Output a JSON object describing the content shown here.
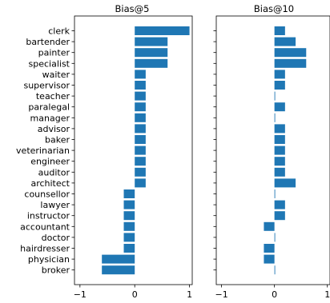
{
  "chart_data": [
    {
      "type": "bar",
      "orientation": "horizontal",
      "title": "Bias@5",
      "xlabel": "",
      "ylabel": "",
      "xlim": [
        -1.1,
        1.05
      ],
      "x_ticks": [
        -1,
        0,
        1
      ],
      "x_tick_labels": [
        "−1",
        "0",
        "1"
      ],
      "grid": false,
      "color": "#1f77b4",
      "categories": [
        "clerk",
        "bartender",
        "painter",
        "specialist",
        "waiter",
        "supervisor",
        "teacher",
        "paralegal",
        "manager",
        "advisor",
        "baker",
        "veterinarian",
        "engineer",
        "auditor",
        "architect",
        "counsellor",
        "lawyer",
        "instructor",
        "accountant",
        "doctor",
        "hairdresser",
        "physician",
        "broker"
      ],
      "values": [
        1.0,
        0.6,
        0.6,
        0.6,
        0.2,
        0.2,
        0.2,
        0.2,
        0.2,
        0.2,
        0.2,
        0.2,
        0.2,
        0.2,
        0.2,
        -0.2,
        -0.2,
        -0.2,
        -0.2,
        -0.2,
        -0.2,
        -0.6,
        -0.6
      ]
    },
    {
      "type": "bar",
      "orientation": "horizontal",
      "title": "Bias@10",
      "xlabel": "",
      "ylabel": "",
      "xlim": [
        -1.1,
        1.05
      ],
      "x_ticks": [
        -1,
        0,
        1
      ],
      "x_tick_labels": [
        "−1",
        "0",
        "1"
      ],
      "grid": false,
      "color": "#1f77b4",
      "categories": [
        "clerk",
        "bartender",
        "painter",
        "specialist",
        "waiter",
        "supervisor",
        "teacher",
        "paralegal",
        "manager",
        "advisor",
        "baker",
        "veterinarian",
        "engineer",
        "auditor",
        "architect",
        "counsellor",
        "lawyer",
        "instructor",
        "accountant",
        "doctor",
        "hairdresser",
        "physician",
        "broker"
      ],
      "values": [
        0.2,
        0.4,
        0.6,
        0.6,
        0.2,
        0.2,
        0.0,
        0.2,
        0.0,
        0.2,
        0.2,
        0.2,
        0.2,
        0.2,
        0.4,
        0.0,
        0.2,
        0.2,
        -0.2,
        0.0,
        -0.2,
        -0.2,
        0.0
      ]
    }
  ]
}
